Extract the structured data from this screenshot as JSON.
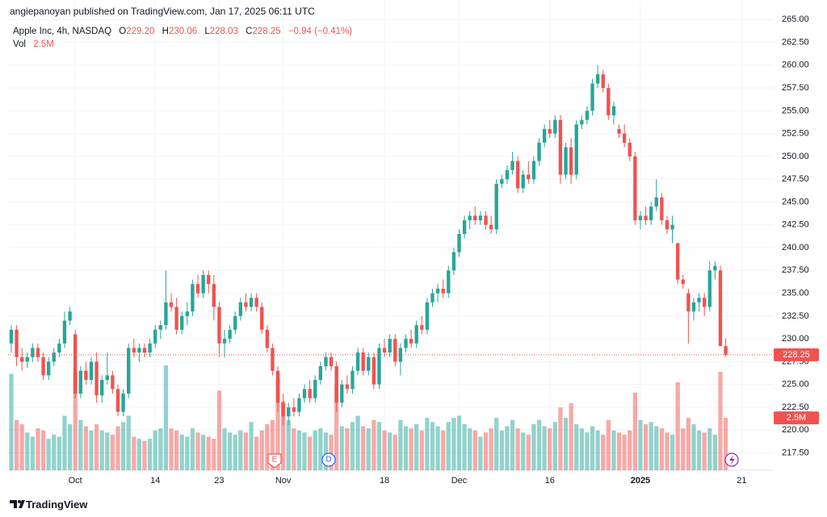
{
  "header": "angiepanoyan published on TradingView.com, Jan 17, 2025 06:11 UTC",
  "footer": "TradingView",
  "chart_data": {
    "type": "candlestick",
    "legend": {
      "symbol": "Apple Inc, 4h, NASDAQ",
      "open_label": "O",
      "open": "229.20",
      "high_label": "H",
      "high": "230.06",
      "low_label": "L",
      "low": "228.03",
      "close_label": "C",
      "close": "228.25",
      "change": "−0.94 (−0.41%)",
      "volume_label": "Vol",
      "volume": "2.5M"
    },
    "last_price_label": "228.25",
    "last_volume_label": "2.5M",
    "events": [
      "E",
      "D"
    ],
    "up_color": "#26a69a",
    "down_color": "#ef5350",
    "up_volume_color": "#26a69a80",
    "down_volume_color": "#ef535080",
    "grid": true,
    "xlim": [
      -0.6,
      143
    ],
    "xticks": [
      {
        "value": 12,
        "label": "Oct"
      },
      {
        "value": 27,
        "label": "14"
      },
      {
        "value": 39,
        "label": "23"
      },
      {
        "value": 51,
        "label": "Nov"
      },
      {
        "value": 70,
        "label": "18"
      },
      {
        "value": 84,
        "label": "Dec"
      },
      {
        "value": 101,
        "label": "16"
      },
      {
        "value": 118,
        "label": "2025"
      },
      {
        "value": 137,
        "label": "21"
      }
    ],
    "ylim": [
      215.6,
      265.2
    ],
    "yticks": [
      {
        "value": 217.5,
        "label": "217.50"
      },
      {
        "value": 220,
        "label": "220.00"
      },
      {
        "value": 222.5,
        "label": "222.50"
      },
      {
        "value": 225,
        "label": "225.00"
      },
      {
        "value": 227.5,
        "label": "227.50"
      },
      {
        "value": 230,
        "label": "230.00"
      },
      {
        "value": 232.5,
        "label": "232.50"
      },
      {
        "value": 235,
        "label": "235.00"
      },
      {
        "value": 237.5,
        "label": "237.50"
      },
      {
        "value": 240,
        "label": "240.00"
      },
      {
        "value": 242.5,
        "label": "242.50"
      },
      {
        "value": 245,
        "label": "245.00"
      },
      {
        "value": 247.5,
        "label": "247.50"
      },
      {
        "value": 250,
        "label": "250.00"
      },
      {
        "value": 252.5,
        "label": "252.50"
      },
      {
        "value": 255,
        "label": "255.00"
      },
      {
        "value": 257.5,
        "label": "257.50"
      },
      {
        "value": 260,
        "label": "260.00"
      },
      {
        "value": 262.5,
        "label": "262.50"
      },
      {
        "value": 265,
        "label": "265.00"
      }
    ],
    "volume_ylim": [
      0,
      21.6
    ],
    "open": [
      229.5,
      231,
      228,
      227.5,
      228,
      229,
      228,
      226,
      227.5,
      228.5,
      229.5,
      232,
      230.5,
      224,
      226.5,
      225.5,
      227.5,
      223.8,
      225.5,
      226,
      224.5,
      222,
      224,
      229,
      228.5,
      229,
      228.5,
      229.5,
      231,
      231.5,
      234,
      233.5,
      231,
      232.5,
      233,
      236,
      235,
      237,
      236,
      233.5,
      229.5,
      230,
      231,
      232.5,
      234,
      233.5,
      234.5,
      233.5,
      231,
      229,
      226.5,
      223,
      221.5,
      222.5,
      222,
      223.5,
      224.5,
      223.5,
      225.5,
      227,
      228,
      227,
      223,
      225,
      224.5,
      226.5,
      228.5,
      226.5,
      228,
      225,
      229,
      228.5,
      230,
      227.5,
      229,
      230,
      229.5,
      231.5,
      231,
      234,
      235,
      235.5,
      235,
      237.5,
      239.5,
      241.5,
      243,
      243.5,
      243,
      243.5,
      242.5,
      242,
      247,
      247.5,
      248.5,
      249.5,
      246.5,
      248,
      247.5,
      249.5,
      251.5,
      253,
      252.5,
      254,
      248,
      251,
      248,
      253.5,
      254,
      255,
      258,
      259,
      257.5,
      254.5,
      253,
      252.5,
      251.5,
      250,
      243,
      243.5,
      243,
      244.5,
      245.5,
      243,
      242,
      240.5,
      236.5,
      235,
      233,
      234,
      234.5,
      233.5,
      237.5,
      237.5,
      229.2
    ],
    "high": [
      231.5,
      231.5,
      229,
      228.5,
      229.5,
      229.5,
      228.5,
      228,
      229,
      230,
      233,
      233.5,
      231,
      227,
      227.5,
      228,
      228.5,
      226,
      228.5,
      226.5,
      225,
      224.5,
      229.5,
      230,
      229.5,
      229.5,
      230,
      231.5,
      232,
      237.5,
      235,
      234.5,
      233,
      234,
      236.5,
      237,
      237.5,
      237.5,
      237,
      234,
      231,
      231.5,
      233,
      234.5,
      235,
      235,
      235,
      234,
      231.5,
      229.5,
      227,
      224,
      223,
      223.5,
      224,
      225,
      225.5,
      226,
      227.5,
      228.5,
      228.5,
      227.5,
      225.5,
      226,
      227,
      229,
      229,
      228.5,
      228.5,
      229.5,
      230,
      230.5,
      230.5,
      229.5,
      230.5,
      231,
      232,
      232.5,
      234.5,
      235.5,
      236,
      236.5,
      238,
      240,
      242,
      243.5,
      244,
      244.5,
      244,
      244,
      243.5,
      247.5,
      248,
      249,
      250.5,
      250,
      248.5,
      249.5,
      250,
      252,
      253.5,
      254,
      254.5,
      254.5,
      251.5,
      252,
      254,
      254.5,
      255.5,
      258.5,
      260,
      259.5,
      258,
      256,
      253.5,
      253.5,
      252,
      250.5,
      244,
      244.5,
      245,
      247.5,
      246,
      243.5,
      243.5,
      240.5,
      237,
      235.5,
      234.5,
      235,
      235,
      238.5,
      238.5,
      238,
      230.06
    ],
    "low": [
      228.5,
      227,
      226.5,
      226.8,
      227.5,
      227.5,
      225.5,
      225.5,
      227,
      228,
      229,
      231.5,
      223.5,
      223.5,
      225,
      225,
      223,
      223,
      225,
      224,
      221.5,
      221.5,
      223.5,
      228,
      227.5,
      228,
      228,
      229,
      230,
      231,
      233,
      230.5,
      230.5,
      231.5,
      232.5,
      234.5,
      234.5,
      235,
      232,
      228,
      228,
      229.5,
      230.5,
      232,
      233,
      233,
      233,
      230.5,
      228.5,
      226,
      222,
      220.5,
      220.5,
      221.5,
      221.5,
      223,
      223,
      223,
      225,
      226.5,
      226.5,
      222,
      222.5,
      224,
      224,
      226,
      226,
      226,
      224.5,
      224.5,
      228,
      228,
      227,
      226,
      228.5,
      229,
      229,
      230.5,
      230.5,
      233.5,
      234,
      234.5,
      234.5,
      237,
      239,
      241,
      242,
      242.5,
      242.5,
      242,
      241.5,
      241.5,
      246.5,
      247,
      248,
      246,
      246,
      247,
      247,
      249,
      251,
      252,
      252,
      247,
      247.5,
      247,
      247.5,
      253,
      253.5,
      254.5,
      257.5,
      257,
      254,
      253.5,
      252,
      251,
      249.5,
      242.5,
      242,
      242.5,
      242.5,
      244,
      242.5,
      241.5,
      240.5,
      236,
      235.5,
      229.5,
      232,
      233,
      232.5,
      233,
      236.5,
      229.5,
      228.03
    ],
    "close": [
      231,
      228,
      227.5,
      228,
      229,
      228,
      226,
      227.5,
      228.5,
      229.5,
      232,
      233,
      224,
      226.5,
      225.5,
      227.5,
      223.8,
      225.5,
      226,
      224.5,
      222,
      224,
      229,
      228.5,
      229,
      228.5,
      229.5,
      231,
      231.5,
      234,
      233.5,
      231,
      232.5,
      233,
      236,
      235,
      237,
      236,
      233.5,
      229.5,
      230,
      231,
      232.5,
      234,
      233.5,
      234.5,
      233.5,
      231,
      229,
      226.5,
      223,
      221.5,
      222.5,
      222,
      223.5,
      224.5,
      223.5,
      225.5,
      227,
      228,
      227,
      223,
      225,
      224.5,
      226.5,
      228.5,
      226.5,
      228,
      225,
      229,
      228.5,
      230,
      227.5,
      229,
      230,
      229.5,
      231.5,
      231,
      234,
      235,
      235.5,
      235,
      237.5,
      239.5,
      241.5,
      243,
      243.5,
      243,
      243.5,
      242.5,
      242,
      247,
      247.5,
      248.5,
      249.5,
      246.5,
      248,
      247.5,
      249.5,
      251.5,
      253,
      252.5,
      254,
      248,
      251,
      248,
      253.5,
      254,
      255,
      258,
      259,
      257.5,
      254.5,
      255.5,
      252.5,
      251.5,
      250,
      243,
      243.5,
      243,
      244.5,
      245.5,
      243,
      242,
      242.5,
      236.5,
      236,
      233,
      234,
      234.5,
      233.5,
      237.5,
      238,
      229.2,
      228.25
    ],
    "volume": [
      4.6,
      2.4,
      2.2,
      1.8,
      1.6,
      2,
      1.9,
      1.5,
      1.7,
      1.6,
      2.6,
      2.2,
      4.7,
      2.4,
      2.1,
      1.9,
      2.2,
      1.9,
      1.8,
      1.7,
      2.1,
      2.3,
      2.6,
      1.6,
      1.5,
      1.4,
      1.5,
      1.9,
      2,
      5,
      2,
      1.9,
      1.7,
      1.6,
      2,
      1.8,
      1.7,
      1.6,
      1.5,
      3.8,
      2,
      1.8,
      1.7,
      1.9,
      1.8,
      2.3,
      1.6,
      1.9,
      2.2,
      2.4,
      4.4,
      3.3,
      2.4,
      2,
      1.9,
      1.8,
      1.6,
      1.9,
      2,
      1.8,
      1.7,
      4.1,
      2.1,
      2,
      2.3,
      2.6,
      2.1,
      2,
      2.4,
      2.3,
      1.9,
      1.8,
      1.7,
      2.4,
      2.1,
      2,
      2.2,
      1.9,
      2.5,
      2.3,
      2.1,
      1.9,
      2.3,
      2.5,
      2.6,
      2.2,
      2,
      1.9,
      1.6,
      1.8,
      2,
      2.5,
      1.9,
      2.1,
      2.4,
      2,
      1.8,
      1.7,
      2.2,
      2.4,
      2.1,
      2,
      2.3,
      3,
      2.5,
      3.2,
      2.2,
      2,
      1.8,
      2.1,
      1.9,
      1.7,
      2.4,
      1.9,
      1.8,
      1.7,
      1.9,
      3.7,
      2.4,
      2.2,
      2.3,
      2.1,
      2,
      1.8,
      1.7,
      4.2,
      2,
      2.5,
      2.2,
      1.9,
      1.8,
      2,
      1.7,
      4.7,
      2.5
    ]
  }
}
